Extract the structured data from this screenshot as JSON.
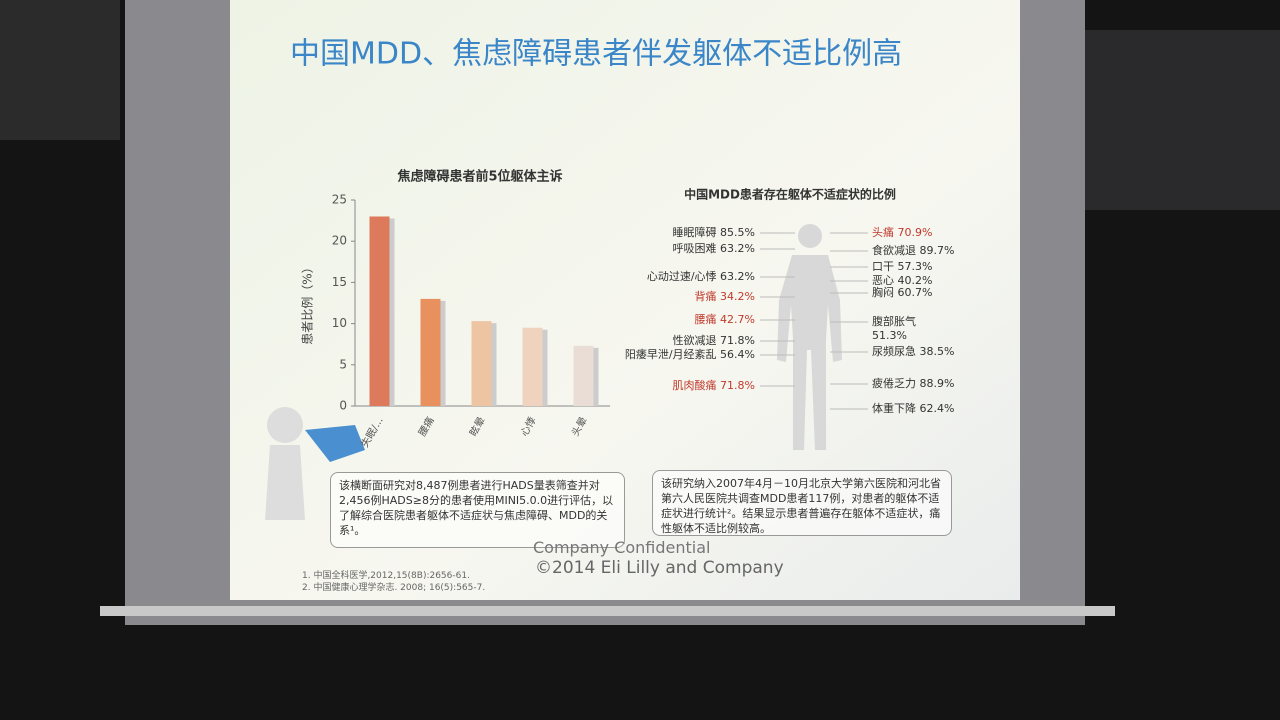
{
  "slide": {
    "title": "中国MDD、焦虑障碍患者伴发躯体不适比例高",
    "chart_data": {
      "type": "bar",
      "title": "焦虑障碍患者前5位躯体主诉",
      "y_label": "患者比例（%）",
      "categories": [
        "失眠/...",
        "腰痛",
        "眩晕",
        "心悸",
        "头晕"
      ],
      "values": [
        23,
        13,
        10.3,
        9.5,
        7.3
      ],
      "colors": [
        "#de7a5c",
        "#e8915f",
        "#eec5a2",
        "#efd3bf",
        "#e9ddd5"
      ],
      "ylim": [
        0,
        25
      ],
      "yticks": [
        0,
        5,
        10,
        15,
        20,
        25
      ]
    },
    "diagram": {
      "title": "中国MDD患者存在躯体不适症状的比例",
      "left": [
        {
          "text": "睡眠障碍 85.5%",
          "color": "#333333"
        },
        {
          "text": "呼吸困难 63.2%",
          "color": "#333333"
        },
        {
          "text": "心动过速/心悸 63.2%",
          "color": "#333333"
        },
        {
          "text": "背痛 34.2%",
          "color": "#c0392b"
        },
        {
          "text": "腰痛 42.7%",
          "color": "#c0392b"
        },
        {
          "text": "性欲减退 71.8%",
          "color": "#333333"
        },
        {
          "text": "阳痿早泄/月经紊乱 56.4%",
          "color": "#333333"
        },
        {
          "text": "肌肉酸痛 71.8%",
          "color": "#c0392b"
        }
      ],
      "right": [
        {
          "text": "头痛 70.9%",
          "color": "#c0392b"
        },
        {
          "text": "食欲减退 89.7%",
          "color": "#333333"
        },
        {
          "text": "口干 57.3%",
          "color": "#333333"
        },
        {
          "text": "恶心 40.2%",
          "color": "#333333"
        },
        {
          "text": "胸闷 60.7%",
          "color": "#333333"
        },
        {
          "text": "腹部胀气",
          "color": "#333333"
        },
        {
          "text": "51.3%",
          "color": "#333333"
        },
        {
          "text": "尿频尿急 38.5%",
          "color": "#333333"
        },
        {
          "text": "疲倦乏力 88.9%",
          "color": "#333333"
        },
        {
          "text": "体重下降 62.4%",
          "color": "#333333"
        }
      ]
    },
    "left_note": "该横断面研究对8,487例患者进行HADS量表筛查并对2,456例HADS≥8分的患者使用MINI5.0.0进行评估，以了解综合医院患者躯体不适症状与焦虑障碍、MDD的关系¹。",
    "right_note": "该研究纳入2007年4月－10月北京大学第六医院和河北省第六人民医院共调查MDD患者117例，对患者的躯体不适症状进行统计²。结果显示患者普遍存在躯体不适症状，痛性躯体不适比例较高。",
    "references": [
      "1. 中国全科医学,2012,15(8B):2656-61.",
      "2. 中国健康心理学杂志. 2008; 16(5):565-7."
    ],
    "confidential": "Company Confidential",
    "copyright": "©2014 Eli Lilly and Company"
  }
}
